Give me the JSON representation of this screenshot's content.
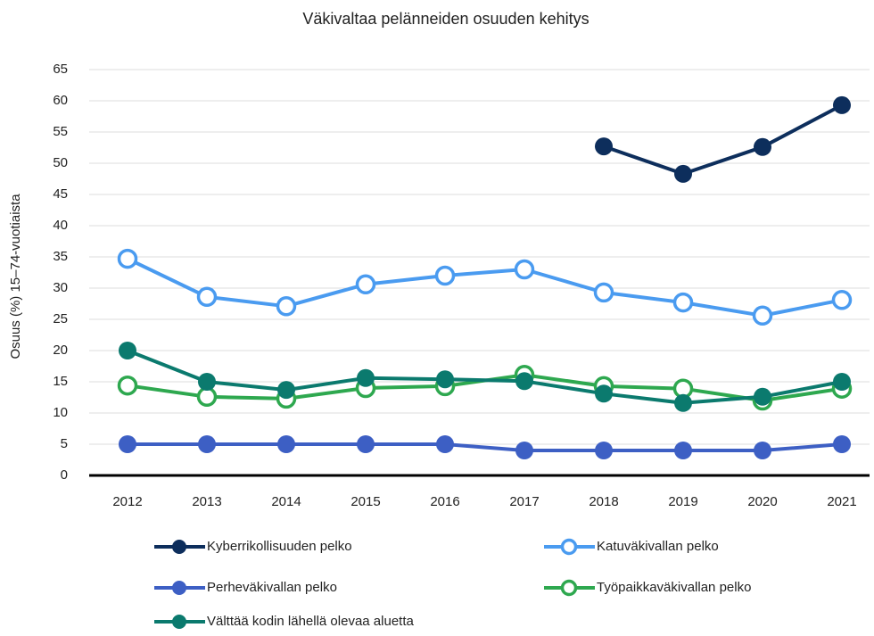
{
  "chart_data": {
    "type": "line",
    "title": "Väkivaltaa pelänneiden osuuden kehitys",
    "y_label": "Osuus (%) 15–74-vuotiaista",
    "categories": [
      "2012",
      "2013",
      "2014",
      "2015",
      "2016",
      "2017",
      "2018",
      "2019",
      "2020",
      "2021"
    ],
    "series": [
      {
        "name": "Kyberrikollisuuden pelko",
        "color": "#0d2e5c",
        "marker": "filled",
        "values": [
          null,
          null,
          null,
          null,
          null,
          null,
          52.7,
          48.3,
          52.6,
          59.3
        ]
      },
      {
        "name": "Katuväkivallan pelko",
        "color": "#4a9bf0",
        "marker": "hollow",
        "values": [
          34.7,
          28.6,
          27.1,
          30.6,
          32,
          33,
          29.3,
          27.7,
          25.6,
          28.1
        ]
      },
      {
        "name": "Perheväkivallan pelko",
        "color": "#3d5fc4",
        "marker": "filled",
        "values": [
          5,
          5,
          5,
          5,
          5,
          4,
          4,
          4,
          4,
          5
        ]
      },
      {
        "name": "Työpaikkaväkivallan pelko",
        "color": "#2ea84f",
        "marker": "hollow",
        "values": [
          14.4,
          12.6,
          12.3,
          14,
          14.3,
          16.1,
          14.3,
          13.9,
          12,
          13.9
        ]
      },
      {
        "name": "Välttää kodin lähellä olevaa aluetta",
        "color": "#0b7a6e",
        "marker": "filled",
        "values": [
          20,
          15,
          13.7,
          15.6,
          15.4,
          15.1,
          13.1,
          11.6,
          12.6,
          15
        ]
      }
    ],
    "ylim": [
      0,
      65
    ],
    "yticks": [
      0,
      5,
      10,
      15,
      20,
      25,
      30,
      35,
      40,
      45,
      50,
      55,
      60,
      65
    ],
    "grid": true
  }
}
